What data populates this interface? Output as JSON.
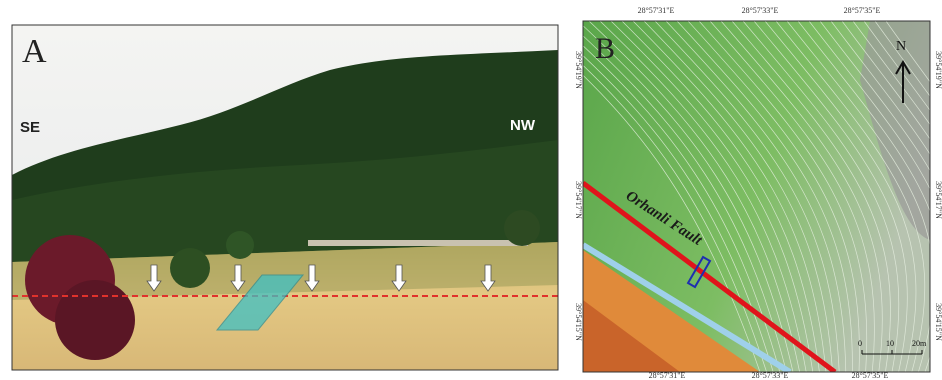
{
  "panel_a": {
    "label": "A",
    "left_label": "SE",
    "right_label": "NW"
  },
  "panel_b": {
    "label": "B",
    "fault_label": "Orhanli Fault",
    "north": "N",
    "top_coords": [
      "28°57'31\"E",
      "28°57'33\"E",
      "28°57'35\"E"
    ],
    "bottom_coords": [
      "28°57'31\"E",
      "28°57'33\"E",
      "28°57'35\"E"
    ],
    "left_coords": [
      "39°54'19\"N",
      "39°54'17\"N",
      "39°54'15\"N"
    ],
    "right_coords": [
      "39°54'19\"N",
      "39°54'17\"N",
      "39°54'15\"N"
    ],
    "scale": [
      "0",
      "10",
      "20m"
    ]
  }
}
